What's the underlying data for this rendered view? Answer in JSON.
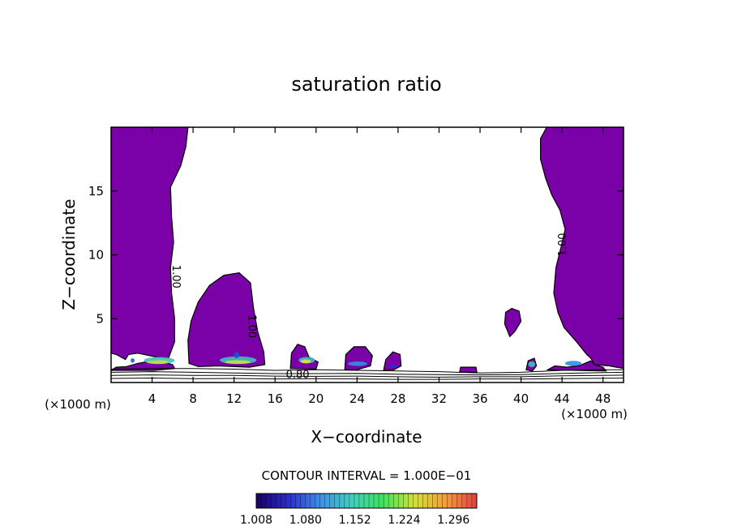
{
  "chart_data": {
    "type": "heatmap",
    "title": "saturation ratio",
    "xlabel": "X−coordinate",
    "ylabel": "Z−coordinate",
    "x_unit_left": "(×1000 m)",
    "x_unit_right": "(×1000 m)",
    "xlim": [
      0,
      50
    ],
    "ylim": [
      0,
      20
    ],
    "x_ticks": [
      4,
      8,
      12,
      16,
      20,
      24,
      28,
      32,
      36,
      40,
      44,
      48
    ],
    "x_tick_labels": [
      "4",
      "8",
      "12",
      "16",
      "20",
      "24",
      "28",
      "32",
      "36",
      "40",
      "44",
      "48"
    ],
    "y_ticks": [
      5,
      10,
      15
    ],
    "y_tick_labels": [
      "5",
      "10",
      "15"
    ],
    "fill_color": "#7a00a8",
    "contour_labels": [
      {
        "text": "1.00",
        "x": 6.0,
        "y": 8.3,
        "rotate": 90
      },
      {
        "text": "1.00",
        "x": 13.4,
        "y": 4.4,
        "rotate": 90
      },
      {
        "text": "1.00",
        "x": 44.4,
        "y": 10.8,
        "rotate": -90
      },
      {
        "text": "0.80",
        "x": 18.2,
        "y": 0.35,
        "rotate": 0
      }
    ],
    "contour_interval_text": "CONTOUR INTERVAL = 1.000E−01",
    "colorbar": {
      "ticks": [
        "1.008",
        "1.080",
        "1.152",
        "1.224",
        "1.296"
      ],
      "range": [
        1.008,
        1.33
      ],
      "colors": [
        "#1a0060",
        "#2a2ad0",
        "#3a8ef0",
        "#40d0c0",
        "#40e060",
        "#d0e040",
        "#f0a040",
        "#e04040"
      ]
    },
    "regions": [
      {
        "name": "left-column",
        "fill": "#7a00a8",
        "points": [
          [
            0,
            20
          ],
          [
            7.5,
            20
          ],
          [
            7.3,
            18.5
          ],
          [
            6.8,
            17
          ],
          [
            5.8,
            15.3
          ],
          [
            5.9,
            13
          ],
          [
            6.1,
            11
          ],
          [
            5.8,
            9
          ],
          [
            5.9,
            7
          ],
          [
            6.2,
            5
          ],
          [
            6.2,
            3.2
          ],
          [
            5.6,
            1.9
          ],
          [
            4.4,
            2.0
          ],
          [
            2.6,
            2.3
          ],
          [
            1.7,
            2.2
          ],
          [
            1.4,
            1.8
          ],
          [
            0.5,
            2.2
          ],
          [
            0,
            2.3
          ]
        ]
      },
      {
        "name": "left-column-base",
        "fill": "#7a00a8",
        "points": [
          [
            0,
            0.95
          ],
          [
            0.5,
            1.2
          ],
          [
            1.5,
            1.25
          ],
          [
            2.6,
            1.5
          ],
          [
            4.3,
            1.75
          ],
          [
            6.0,
            1.4
          ],
          [
            6.2,
            1.1
          ],
          [
            4.2,
            0.95
          ],
          [
            2.0,
            0.95
          ]
        ]
      },
      {
        "name": "central-blob",
        "fill": "#7a00a8",
        "points": [
          [
            7.6,
            1.5
          ],
          [
            7.5,
            3.3
          ],
          [
            7.8,
            4.8
          ],
          [
            8.5,
            6.3
          ],
          [
            9.6,
            7.6
          ],
          [
            11.0,
            8.4
          ],
          [
            12.5,
            8.6
          ],
          [
            13.6,
            7.8
          ],
          [
            13.9,
            5.8
          ],
          [
            14.3,
            4.0
          ],
          [
            14.9,
            2.4
          ],
          [
            15.0,
            1.4
          ],
          [
            13.5,
            1.2
          ],
          [
            10.5,
            1.3
          ],
          [
            8.5,
            1.25
          ]
        ]
      },
      {
        "name": "blob-18",
        "fill": "#7a00a8",
        "points": [
          [
            17.5,
            1.1
          ],
          [
            17.6,
            2.3
          ],
          [
            18.2,
            3.0
          ],
          [
            18.9,
            2.8
          ],
          [
            19.3,
            2.0
          ],
          [
            20.2,
            1.6
          ],
          [
            20.0,
            1.05
          ]
        ]
      },
      {
        "name": "blob-24",
        "fill": "#7a00a8",
        "points": [
          [
            22.8,
            1.0
          ],
          [
            22.9,
            2.2
          ],
          [
            23.7,
            2.8
          ],
          [
            24.8,
            2.8
          ],
          [
            25.5,
            2.1
          ],
          [
            25.3,
            1.3
          ],
          [
            24.0,
            1.0
          ]
        ]
      },
      {
        "name": "blob-28",
        "fill": "#7a00a8",
        "points": [
          [
            26.6,
            1.0
          ],
          [
            26.8,
            1.8
          ],
          [
            27.5,
            2.4
          ],
          [
            28.2,
            2.2
          ],
          [
            28.3,
            1.3
          ],
          [
            27.6,
            1.0
          ]
        ]
      },
      {
        "name": "blob-35",
        "fill": "#7a00a8",
        "points": [
          [
            34.0,
            0.8
          ],
          [
            34.1,
            1.2
          ],
          [
            35.6,
            1.2
          ],
          [
            35.7,
            0.8
          ]
        ]
      },
      {
        "name": "blob-39",
        "fill": "#7a00a8",
        "points": [
          [
            38.7,
            4.0
          ],
          [
            38.4,
            4.6
          ],
          [
            38.5,
            5.5
          ],
          [
            39.1,
            5.8
          ],
          [
            39.8,
            5.6
          ],
          [
            40.0,
            4.8
          ],
          [
            39.4,
            4.0
          ],
          [
            38.9,
            3.6
          ]
        ]
      },
      {
        "name": "blob-41",
        "fill": "#7a00a8",
        "points": [
          [
            40.5,
            1.0
          ],
          [
            40.7,
            1.7
          ],
          [
            41.3,
            1.9
          ],
          [
            41.5,
            1.3
          ],
          [
            41.1,
            0.9
          ]
        ]
      },
      {
        "name": "right-column",
        "fill": "#7a00a8",
        "points": [
          [
            50,
            20
          ],
          [
            50,
            1.1
          ],
          [
            48.6,
            1.3
          ],
          [
            47.2,
            1.4
          ],
          [
            46.8,
            1.9
          ],
          [
            46.4,
            2.2
          ],
          [
            45.4,
            3.2
          ],
          [
            44.2,
            4.3
          ],
          [
            43.6,
            5.5
          ],
          [
            43.2,
            7.0
          ],
          [
            43.4,
            9.0
          ],
          [
            43.9,
            10.6
          ],
          [
            44.3,
            12.0
          ],
          [
            43.8,
            13.5
          ],
          [
            43.0,
            14.7
          ],
          [
            42.4,
            16.0
          ],
          [
            41.9,
            17.5
          ],
          [
            41.9,
            19.1
          ],
          [
            42.5,
            20
          ]
        ]
      },
      {
        "name": "right-column-base",
        "fill": "#7a00a8",
        "points": [
          [
            42.6,
            1.0
          ],
          [
            43.3,
            1.3
          ],
          [
            44.5,
            1.2
          ],
          [
            45.8,
            1.35
          ],
          [
            46.8,
            1.7
          ],
          [
            47.2,
            1.4
          ],
          [
            48.0,
            1.2
          ],
          [
            48.3,
            0.9
          ]
        ]
      }
    ],
    "highlights": [
      {
        "x": 3.2,
        "y": 1.45,
        "w": 3.0,
        "h": 0.55,
        "color": "#40c0c0"
      },
      {
        "x": 3.5,
        "y": 1.45,
        "w": 2.1,
        "h": 0.3,
        "color": "#c8e040"
      },
      {
        "x": 1.9,
        "y": 1.55,
        "w": 0.4,
        "h": 0.35,
        "color": "#2060e0"
      },
      {
        "x": 10.6,
        "y": 1.45,
        "w": 3.6,
        "h": 0.6,
        "color": "#40c0c0"
      },
      {
        "x": 11.1,
        "y": 1.45,
        "w": 2.5,
        "h": 0.3,
        "color": "#c8e040"
      },
      {
        "x": 12.0,
        "y": 1.9,
        "w": 0.5,
        "h": 0.5,
        "color": "#2050d0"
      },
      {
        "x": 18.3,
        "y": 1.5,
        "w": 1.6,
        "h": 0.5,
        "color": "#40c0c0"
      },
      {
        "x": 18.5,
        "y": 1.5,
        "w": 1.0,
        "h": 0.3,
        "color": "#e0e040"
      },
      {
        "x": 23.1,
        "y": 1.3,
        "w": 1.9,
        "h": 0.35,
        "color": "#3090e0"
      },
      {
        "x": 27.0,
        "y": 1.15,
        "w": 1.0,
        "h": 0.25,
        "color": "#2a2ad0"
      },
      {
        "x": 40.7,
        "y": 1.2,
        "w": 0.7,
        "h": 0.45,
        "color": "#40c0c0"
      },
      {
        "x": 44.3,
        "y": 1.3,
        "w": 1.6,
        "h": 0.4,
        "color": "#3090e0"
      }
    ],
    "contour_lines": [
      [
        [
          0,
          1.05
        ],
        [
          4,
          1.1
        ],
        [
          8,
          1.1
        ],
        [
          12,
          1.05
        ],
        [
          16,
          0.95
        ],
        [
          20,
          1.0
        ],
        [
          24,
          0.95
        ],
        [
          28,
          0.9
        ],
        [
          32,
          0.85
        ],
        [
          36,
          0.75
        ],
        [
          40,
          0.8
        ],
        [
          44,
          0.95
        ],
        [
          48,
          1.0
        ],
        [
          50,
          1.0
        ]
      ],
      [
        [
          0,
          0.8
        ],
        [
          4,
          0.85
        ],
        [
          8,
          0.8
        ],
        [
          12,
          0.75
        ],
        [
          16,
          0.7
        ],
        [
          20,
          0.7
        ],
        [
          24,
          0.72
        ],
        [
          28,
          0.65
        ],
        [
          32,
          0.62
        ],
        [
          36,
          0.6
        ],
        [
          40,
          0.62
        ],
        [
          44,
          0.72
        ],
        [
          48,
          0.78
        ],
        [
          50,
          0.8
        ]
      ],
      [
        [
          0,
          0.55
        ],
        [
          4,
          0.6
        ],
        [
          8,
          0.55
        ],
        [
          12,
          0.55
        ],
        [
          16,
          0.5
        ],
        [
          20,
          0.48
        ],
        [
          24,
          0.5
        ],
        [
          28,
          0.45
        ],
        [
          32,
          0.42
        ],
        [
          36,
          0.45
        ],
        [
          40,
          0.45
        ],
        [
          44,
          0.52
        ],
        [
          48,
          0.55
        ],
        [
          50,
          0.58
        ]
      ],
      [
        [
          0,
          0.32
        ],
        [
          4,
          0.35
        ],
        [
          8,
          0.3
        ],
        [
          12,
          0.32
        ],
        [
          16,
          0.28
        ],
        [
          20,
          0.3
        ],
        [
          24,
          0.28
        ],
        [
          28,
          0.25
        ],
        [
          32,
          0.25
        ],
        [
          36,
          0.28
        ],
        [
          40,
          0.27
        ],
        [
          44,
          0.3
        ],
        [
          48,
          0.33
        ],
        [
          50,
          0.35
        ]
      ]
    ]
  }
}
